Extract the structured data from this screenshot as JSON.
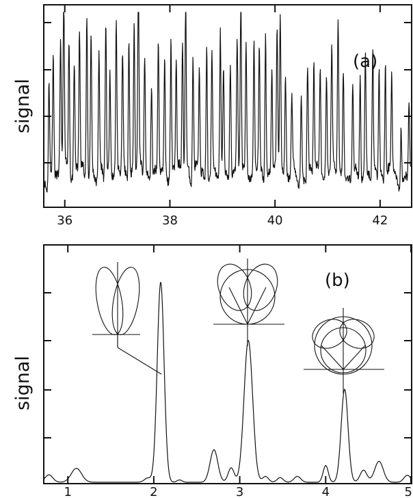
{
  "chart_data": [
    {
      "type": "line",
      "panel_label": "(a)",
      "ylabel": "signal",
      "xlim": [
        35.6,
        42.6
      ],
      "x_ticks": [
        "36",
        "38",
        "40",
        "42"
      ],
      "series": [
        {
          "peaks": [
            {
              "x": 35.7,
              "y": 0.56
            },
            {
              "x": 35.78,
              "y": 0.64
            },
            {
              "x": 35.92,
              "y": 0.73
            },
            {
              "x": 35.98,
              "y": 0.98
            },
            {
              "x": 36.08,
              "y": 0.74
            },
            {
              "x": 36.18,
              "y": 0.6
            },
            {
              "x": 36.28,
              "y": 0.77
            },
            {
              "x": 36.42,
              "y": 0.9
            },
            {
              "x": 36.5,
              "y": 0.75
            },
            {
              "x": 36.65,
              "y": 0.64
            },
            {
              "x": 36.78,
              "y": 0.85
            },
            {
              "x": 36.86,
              "y": 0.55
            },
            {
              "x": 36.98,
              "y": 0.81
            },
            {
              "x": 37.1,
              "y": 0.64
            },
            {
              "x": 37.22,
              "y": 0.78
            },
            {
              "x": 37.32,
              "y": 0.83
            },
            {
              "x": 37.4,
              "y": 1.0
            },
            {
              "x": 37.52,
              "y": 0.68
            },
            {
              "x": 37.65,
              "y": 0.55
            },
            {
              "x": 37.78,
              "y": 0.73
            },
            {
              "x": 37.9,
              "y": 0.66
            },
            {
              "x": 38.02,
              "y": 0.75
            },
            {
              "x": 38.12,
              "y": 0.6
            },
            {
              "x": 38.24,
              "y": 0.72
            },
            {
              "x": 38.3,
              "y": 0.94
            },
            {
              "x": 38.44,
              "y": 0.68
            },
            {
              "x": 38.56,
              "y": 0.56
            },
            {
              "x": 38.7,
              "y": 0.74
            },
            {
              "x": 38.8,
              "y": 0.65
            },
            {
              "x": 38.96,
              "y": 0.77
            },
            {
              "x": 39.02,
              "y": 0.55
            },
            {
              "x": 39.15,
              "y": 0.63
            },
            {
              "x": 39.28,
              "y": 0.72
            },
            {
              "x": 39.35,
              "y": 0.9
            },
            {
              "x": 39.45,
              "y": 0.72
            },
            {
              "x": 39.6,
              "y": 0.73
            },
            {
              "x": 39.7,
              "y": 0.66
            },
            {
              "x": 39.82,
              "y": 0.82
            },
            {
              "x": 39.94,
              "y": 0.6
            },
            {
              "x": 40.04,
              "y": 0.76
            },
            {
              "x": 40.1,
              "y": 0.83
            },
            {
              "x": 40.2,
              "y": 0.54
            },
            {
              "x": 40.32,
              "y": 0.43
            },
            {
              "x": 40.5,
              "y": 0.45
            },
            {
              "x": 40.62,
              "y": 0.62
            },
            {
              "x": 40.74,
              "y": 0.6
            },
            {
              "x": 40.86,
              "y": 0.63
            },
            {
              "x": 40.98,
              "y": 0.56
            },
            {
              "x": 41.08,
              "y": 0.68
            },
            {
              "x": 41.2,
              "y": 0.88
            },
            {
              "x": 41.3,
              "y": 0.6
            },
            {
              "x": 41.48,
              "y": 0.52
            },
            {
              "x": 41.62,
              "y": 0.57
            },
            {
              "x": 41.72,
              "y": 0.67
            },
            {
              "x": 41.86,
              "y": 0.66
            },
            {
              "x": 41.98,
              "y": 0.61
            },
            {
              "x": 42.1,
              "y": 0.65
            },
            {
              "x": 42.22,
              "y": 0.53
            },
            {
              "x": 42.4,
              "y": 0.33
            },
            {
              "x": 42.55,
              "y": 0.42
            }
          ]
        }
      ]
    },
    {
      "type": "line",
      "panel_label": "(b)",
      "ylabel": "signal",
      "xlim": [
        0.72,
        5.0
      ],
      "ylim": [
        0,
        1
      ],
      "x_ticks": [
        "1",
        "2",
        "3",
        "4",
        "5"
      ],
      "series": [
        {
          "peaks": [
            {
              "x": 0.78,
              "y": 0.032,
              "w": 0.045
            },
            {
              "x": 1.1,
              "y": 0.06,
              "w": 0.06
            },
            {
              "x": 1.93,
              "y": 0.018,
              "w": 0.04
            },
            {
              "x": 2.08,
              "y": 0.86,
              "w": 0.04
            },
            {
              "x": 2.3,
              "y": 0.01,
              "w": 0.03
            },
            {
              "x": 2.7,
              "y": 0.14,
              "w": 0.045
            },
            {
              "x": 2.9,
              "y": 0.062,
              "w": 0.035
            },
            {
              "x": 3.1,
              "y": 0.61,
              "w": 0.05
            },
            {
              "x": 3.3,
              "y": 0.025,
              "w": 0.035
            },
            {
              "x": 3.47,
              "y": 0.02,
              "w": 0.035
            },
            {
              "x": 3.67,
              "y": 0.025,
              "w": 0.04
            },
            {
              "x": 4.0,
              "y": 0.072,
              "w": 0.03
            },
            {
              "x": 4.22,
              "y": 0.4,
              "w": 0.04
            },
            {
              "x": 4.44,
              "y": 0.052,
              "w": 0.04
            },
            {
              "x": 4.62,
              "y": 0.09,
              "w": 0.05
            },
            {
              "x": 4.95,
              "y": 0.03,
              "w": 0.04
            }
          ]
        }
      ]
    }
  ]
}
